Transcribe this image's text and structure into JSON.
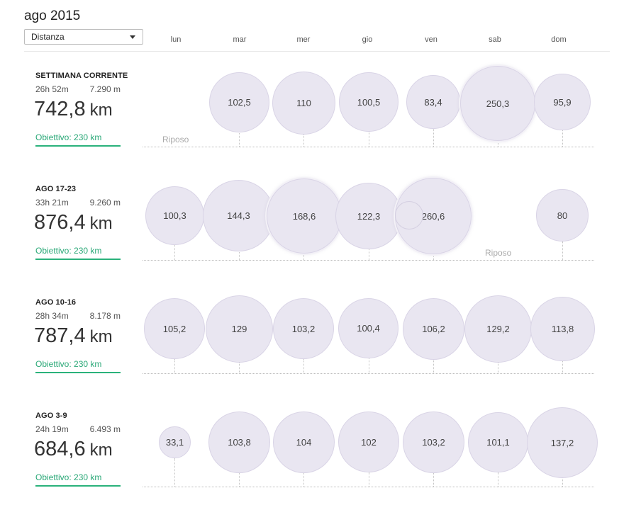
{
  "header": {
    "month": "ago 2015",
    "metric_selected": "Distanza"
  },
  "days": [
    "lun",
    "mar",
    "mer",
    "gio",
    "ven",
    "sab",
    "dom"
  ],
  "rest_label": "Riposo",
  "weeks": [
    {
      "label": "SETTIMANA CORRENTE",
      "time": "26h 52m",
      "elevation": "7.290 m",
      "total": "742,8",
      "unit": "km",
      "goal": "Obiettivo: 230 km",
      "values": [
        null,
        "102,5",
        "110",
        "100,5",
        "83,4",
        "250,3",
        "95,9"
      ]
    },
    {
      "label": "AGO 17-23",
      "time": "33h 21m",
      "elevation": "9.260 m",
      "total": "876,4",
      "unit": "km",
      "goal": "Obiettivo: 230 km",
      "values": [
        "100,3",
        "144,3",
        "168,6",
        "122,3",
        "260,6",
        null,
        "80"
      ]
    },
    {
      "label": "AGO 10-16",
      "time": "28h 34m",
      "elevation": "8.178 m",
      "total": "787,4",
      "unit": "km",
      "goal": "Obiettivo: 230 km",
      "values": [
        "105,2",
        "129",
        "103,2",
        "100,4",
        "106,2",
        "129,2",
        "113,8"
      ]
    },
    {
      "label": "AGO 3-9",
      "time": "24h 19m",
      "elevation": "6.493 m",
      "total": "684,6",
      "unit": "km",
      "goal": "Obiettivo: 230 km",
      "values": [
        "33,1",
        "103,8",
        "104",
        "102",
        "103,2",
        "101,1",
        "137,2"
      ]
    }
  ],
  "colors": {
    "bubble_fill": "#e9e6f1",
    "goal_green": "#2ab27b"
  }
}
